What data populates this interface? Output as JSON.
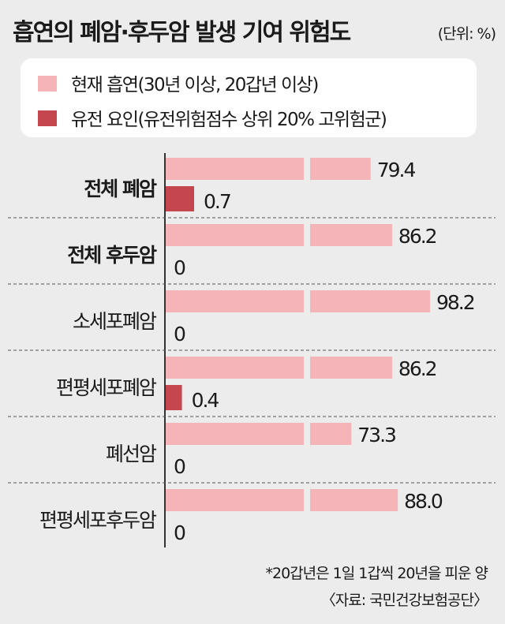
{
  "title": "흡연의 폐암·후두암 발생 기여 위험도",
  "unit": "(단위: %)",
  "footnote": "*20갑년은 1일 1갑씩 20년을 피운 양",
  "source": "〈자료: 국민건강보험공단〉",
  "colors": {
    "smoking": "#f4b4b8",
    "genetic": "#c5464f",
    "background": "#ececec",
    "axis": "#333333"
  },
  "chart_data": {
    "type": "bar",
    "orientation": "horizontal",
    "categories": [
      "전체 폐암",
      "전체 후두암",
      "소세포폐암",
      "편평세포폐암",
      "폐선암",
      "편평세포후두암"
    ],
    "bold_categories": [
      "전체 폐암",
      "전체 후두암"
    ],
    "series": [
      {
        "name": "현재 흡연(30년 이상, 20갑년 이상)",
        "values": [
          79.4,
          86.2,
          98.2,
          86.2,
          73.3,
          88.0
        ],
        "labels": [
          "79.4",
          "86.2",
          "98.2",
          "86.2",
          "73.3",
          "88.0"
        ]
      },
      {
        "name": "유전 요인(유전위험점수 상위 20% 고위험군)",
        "values": [
          0.7,
          0,
          0,
          0.4,
          0,
          0
        ],
        "labels": [
          "0.7",
          "0",
          "0",
          "0.4",
          "0",
          "0"
        ]
      }
    ],
    "axis_break": true,
    "xlim": [
      0,
      100
    ],
    "legend": "top"
  }
}
